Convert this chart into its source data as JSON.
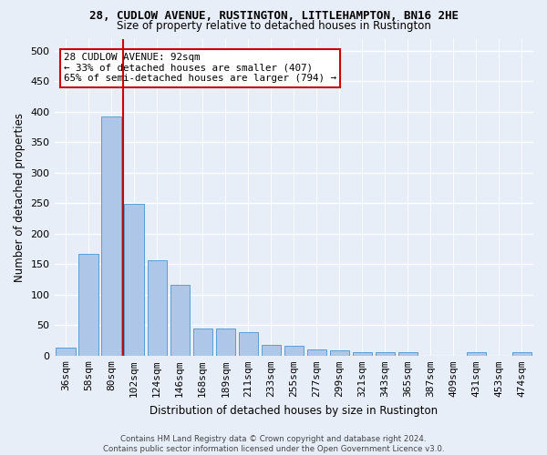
{
  "title1": "28, CUDLOW AVENUE, RUSTINGTON, LITTLEHAMPTON, BN16 2HE",
  "title2": "Size of property relative to detached houses in Rustington",
  "xlabel": "Distribution of detached houses by size in Rustington",
  "ylabel": "Number of detached properties",
  "categories": [
    "36sqm",
    "58sqm",
    "80sqm",
    "102sqm",
    "124sqm",
    "146sqm",
    "168sqm",
    "189sqm",
    "211sqm",
    "233sqm",
    "255sqm",
    "277sqm",
    "299sqm",
    "321sqm",
    "343sqm",
    "365sqm",
    "387sqm",
    "409sqm",
    "431sqm",
    "453sqm",
    "474sqm"
  ],
  "values": [
    13,
    167,
    393,
    249,
    157,
    116,
    44,
    44,
    39,
    18,
    16,
    10,
    8,
    6,
    5,
    5,
    0,
    0,
    5,
    0,
    6
  ],
  "bar_color": "#aec6e8",
  "bar_edge_color": "#5a9fd4",
  "bg_color": "#e8eef8",
  "grid_color": "#ffffff",
  "vline_color": "#cc0000",
  "annotation_title": "28 CUDLOW AVENUE: 92sqm",
  "annotation_line1": "← 33% of detached houses are smaller (407)",
  "annotation_line2": "65% of semi-detached houses are larger (794) →",
  "annotation_box_color": "#ffffff",
  "annotation_box_edge": "#cc0000",
  "footer1": "Contains HM Land Registry data © Crown copyright and database right 2024.",
  "footer2": "Contains public sector information licensed under the Open Government Licence v3.0.",
  "ylim": [
    0,
    520
  ],
  "yticks": [
    0,
    50,
    100,
    150,
    200,
    250,
    300,
    350,
    400,
    450,
    500
  ]
}
